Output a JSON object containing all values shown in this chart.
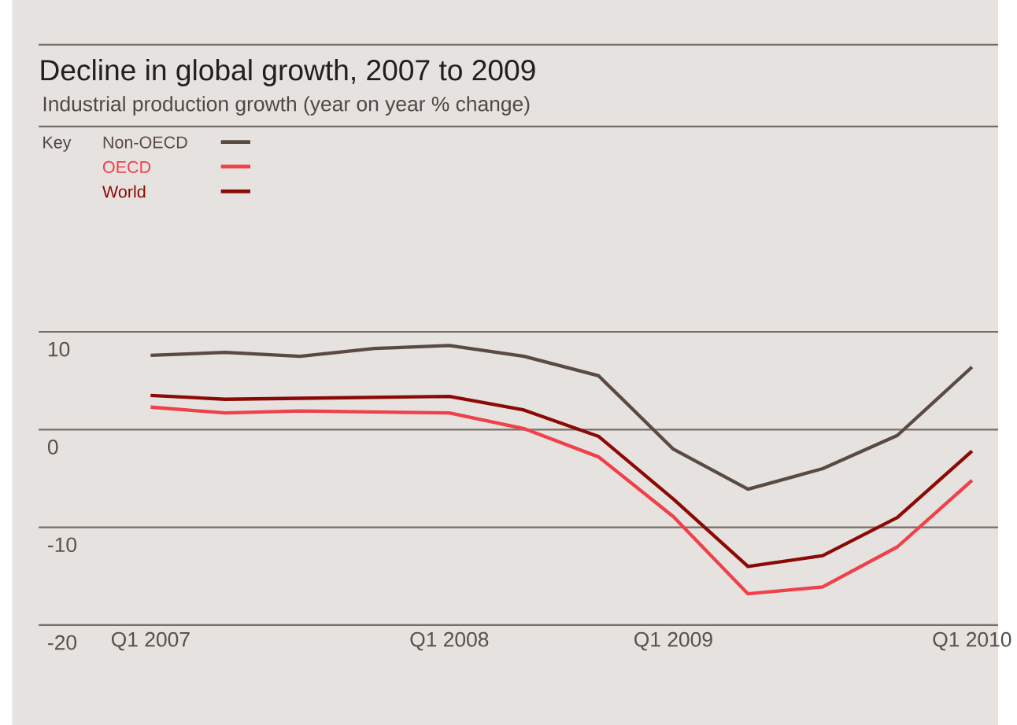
{
  "chart_data": {
    "type": "line",
    "title": "Decline in global growth, 2007 to 2009",
    "subtitle": "Industrial production growth (year on year % change)",
    "legend_title": "Key",
    "categories": [
      "Q1 2007",
      null,
      null,
      null,
      "Q1 2008",
      null,
      null,
      "Q1 2009",
      null,
      null,
      null,
      "Q1 2010"
    ],
    "ylim": [
      -20,
      10
    ],
    "yticks": [
      -20,
      -10,
      0,
      10
    ],
    "grid": "y",
    "legend": "top left",
    "series": [
      {
        "name": "Non-OECD",
        "color": "#5a4a42",
        "values": [
          7.6,
          7.9,
          7.5,
          8.3,
          8.6,
          7.5,
          5.5,
          -2.0,
          -6.1,
          -4.0,
          -0.6,
          6.4
        ]
      },
      {
        "name": "OECD",
        "color": "#f0404a",
        "values": [
          2.3,
          1.7,
          1.9,
          1.8,
          1.7,
          0.1,
          -2.8,
          -8.9,
          -16.8,
          -16.1,
          -12.0,
          -5.2
        ]
      },
      {
        "name": "World",
        "color": "#8b0a05",
        "values": [
          3.5,
          3.1,
          3.2,
          3.3,
          3.4,
          2.0,
          -0.7,
          -7.1,
          -14.0,
          -12.9,
          -9.0,
          -2.2
        ]
      }
    ]
  }
}
